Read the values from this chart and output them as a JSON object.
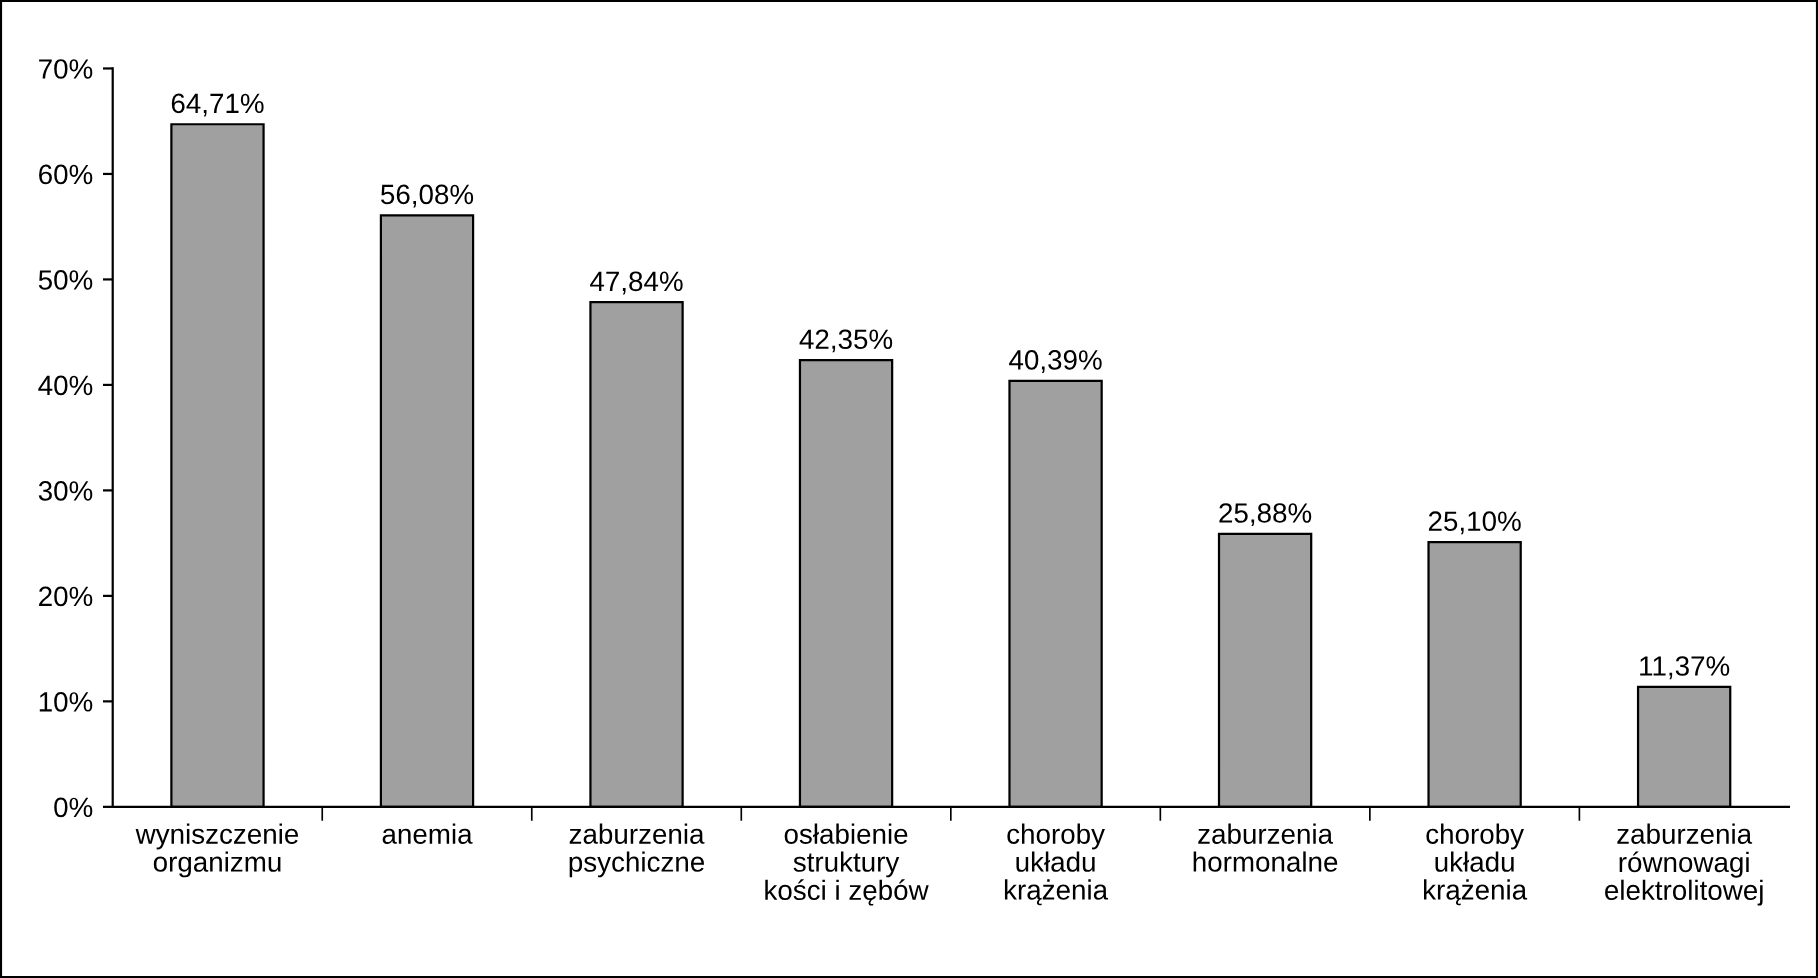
{
  "chart_data": {
    "type": "bar",
    "categories": [
      "wyniszczenie\norganizmu",
      "anemia",
      "zaburzenia\npsychiczne",
      "osłabienie\nstruktury\nkości i zębów",
      "choroby\nukładu\nkrążenia",
      "zaburzenia\nhormonalne",
      "choroby\nukładu\nkrążenia",
      "zaburzenia\nrównowagi\nelektrolitowej"
    ],
    "values": [
      64.71,
      56.08,
      47.84,
      42.35,
      40.39,
      25.88,
      25.1,
      11.37
    ],
    "value_labels": [
      "64,71%",
      "56,08%",
      "47,84%",
      "42,35%",
      "40,39%",
      "25,88%",
      "25,10%",
      "11,37%"
    ],
    "color": "#a0a0a0",
    "ylim": [
      0,
      70
    ],
    "yticks": [
      {
        "value": 0,
        "label": "0%"
      },
      {
        "value": 10,
        "label": "10%"
      },
      {
        "value": 20,
        "label": "20%"
      },
      {
        "value": 30,
        "label": "30%"
      },
      {
        "value": 40,
        "label": "40%"
      },
      {
        "value": 50,
        "label": "50%"
      },
      {
        "value": 60,
        "label": "60%"
      },
      {
        "value": 70,
        "label": "70%"
      }
    ],
    "grid": false,
    "legend": false
  }
}
